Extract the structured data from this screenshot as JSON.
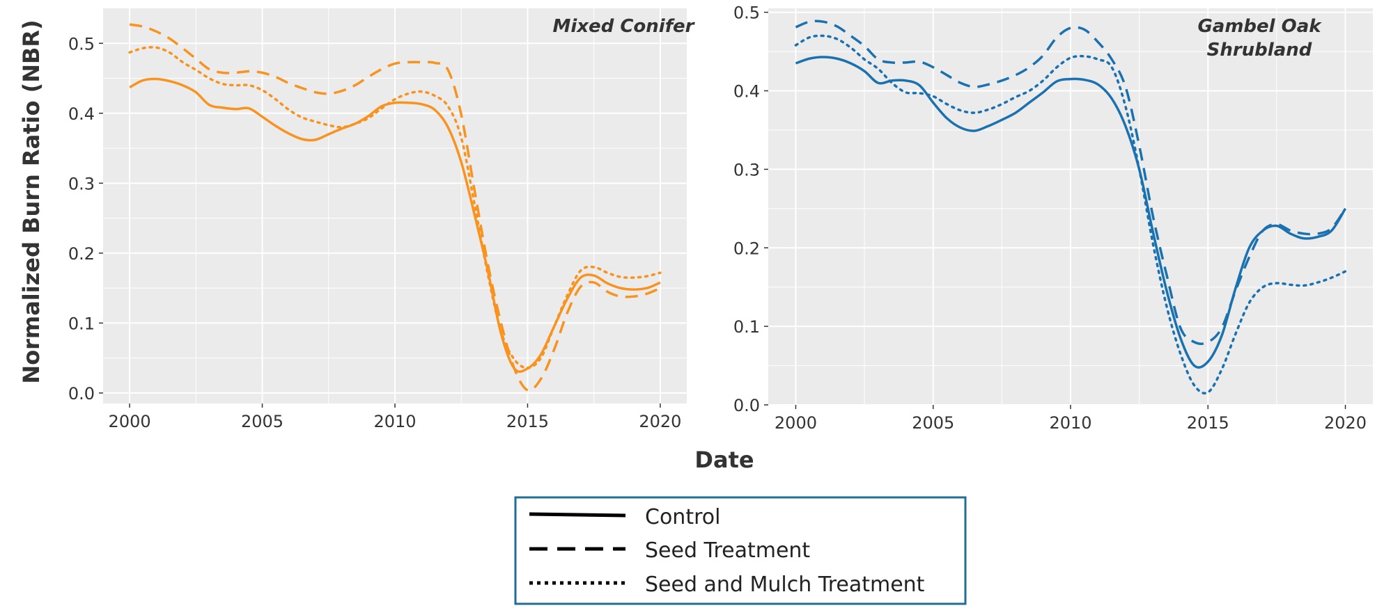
{
  "colors": {
    "mixed_conifer": "#F7931E",
    "gambel_oak": "#1A71B0",
    "panel_bg": "#EBEBEB",
    "grid": "#FFFFFF",
    "legend_border": "#1F6E96",
    "legend_line": "#000000"
  },
  "shared": {
    "ylabel": "Normalized Burn Ratio (NBR)",
    "xlabel": "Date"
  },
  "legend": {
    "placement": "bottom-center",
    "entries": [
      {
        "label": "Control",
        "style": "solid"
      },
      {
        "label": "Seed Treatment",
        "style": "dashed"
      },
      {
        "label": "Seed and Mulch Treatment",
        "style": "dotted"
      }
    ]
  },
  "chart_data": [
    {
      "type": "line",
      "title": "Mixed Conifer",
      "color_key": "mixed_conifer",
      "xlim": [
        1999,
        2021
      ],
      "ylim": [
        -0.015,
        0.55
      ],
      "xticks": [
        2000,
        2005,
        2010,
        2015,
        2020
      ],
      "yticks": [
        0.0,
        0.1,
        0.2,
        0.3,
        0.4,
        0.5
      ],
      "ytick_labels": [
        "0.0",
        "0.1",
        "0.2",
        "0.3",
        "0.4",
        "0.5"
      ],
      "grid": true,
      "x": [
        2000,
        2000.5,
        2001,
        2001.5,
        2002,
        2002.5,
        2003,
        2003.5,
        2004,
        2004.5,
        2005,
        2005.5,
        2006,
        2006.5,
        2007,
        2007.5,
        2008,
        2008.5,
        2009,
        2009.5,
        2010,
        2010.5,
        2011,
        2011.5,
        2012,
        2012.5,
        2013,
        2013.5,
        2014,
        2014.5,
        2015,
        2015.5,
        2016,
        2016.5,
        2017,
        2017.5,
        2018,
        2018.5,
        2019,
        2019.5,
        2020
      ],
      "series": [
        {
          "name": "Control",
          "style": "solid",
          "values": [
            0.437,
            0.447,
            0.449,
            0.446,
            0.44,
            0.43,
            0.412,
            0.408,
            0.406,
            0.407,
            0.395,
            0.382,
            0.371,
            0.363,
            0.362,
            0.37,
            0.378,
            0.385,
            0.396,
            0.41,
            0.415,
            0.415,
            0.413,
            0.405,
            0.38,
            0.33,
            0.255,
            0.175,
            0.085,
            0.035,
            0.035,
            0.055,
            0.095,
            0.135,
            0.165,
            0.168,
            0.157,
            0.15,
            0.148,
            0.15,
            0.158
          ]
        },
        {
          "name": "Seed Treatment",
          "style": "dashed",
          "values": [
            0.527,
            0.524,
            0.517,
            0.507,
            0.493,
            0.478,
            0.463,
            0.458,
            0.458,
            0.46,
            0.458,
            0.452,
            0.443,
            0.436,
            0.43,
            0.428,
            0.432,
            0.44,
            0.452,
            0.463,
            0.471,
            0.473,
            0.473,
            0.472,
            0.462,
            0.398,
            0.29,
            0.185,
            0.1,
            0.035,
            0.004,
            0.02,
            0.062,
            0.115,
            0.152,
            0.158,
            0.145,
            0.138,
            0.138,
            0.142,
            0.15
          ]
        },
        {
          "name": "Seed and Mulch Treatment",
          "style": "dotted",
          "values": [
            0.487,
            0.493,
            0.494,
            0.487,
            0.473,
            0.462,
            0.45,
            0.442,
            0.44,
            0.44,
            0.433,
            0.42,
            0.405,
            0.394,
            0.388,
            0.383,
            0.38,
            0.385,
            0.393,
            0.407,
            0.42,
            0.428,
            0.431,
            0.425,
            0.41,
            0.365,
            0.27,
            0.17,
            0.088,
            0.048,
            0.036,
            0.05,
            0.095,
            0.14,
            0.175,
            0.18,
            0.172,
            0.166,
            0.165,
            0.167,
            0.172
          ]
        }
      ]
    },
    {
      "type": "line",
      "title": "Gambel Oak Shrubland",
      "color_key": "gambel_oak",
      "xlim": [
        1999,
        2021
      ],
      "ylim": [
        0.0,
        0.505
      ],
      "xticks": [
        2000,
        2005,
        2010,
        2015,
        2020
      ],
      "yticks": [
        0.0,
        0.1,
        0.2,
        0.3,
        0.4,
        0.5
      ],
      "ytick_labels": [
        "0.0",
        "0.1",
        "0.2",
        "0.3",
        "0.4",
        "0.5"
      ],
      "grid": true,
      "x": [
        2000,
        2000.5,
        2001,
        2001.5,
        2002,
        2002.5,
        2003,
        2003.5,
        2004,
        2004.5,
        2005,
        2005.5,
        2006,
        2006.5,
        2007,
        2007.5,
        2008,
        2008.5,
        2009,
        2009.5,
        2010,
        2010.5,
        2011,
        2011.5,
        2012,
        2012.5,
        2013,
        2013.5,
        2014,
        2014.5,
        2015,
        2015.5,
        2016,
        2016.5,
        2017,
        2017.5,
        2018,
        2018.5,
        2019,
        2019.5,
        2020
      ],
      "series": [
        {
          "name": "Control",
          "style": "solid",
          "values": [
            0.435,
            0.441,
            0.443,
            0.441,
            0.435,
            0.425,
            0.41,
            0.413,
            0.413,
            0.407,
            0.385,
            0.365,
            0.353,
            0.349,
            0.355,
            0.363,
            0.372,
            0.385,
            0.398,
            0.412,
            0.415,
            0.414,
            0.408,
            0.39,
            0.355,
            0.3,
            0.22,
            0.145,
            0.085,
            0.05,
            0.055,
            0.088,
            0.148,
            0.2,
            0.222,
            0.228,
            0.218,
            0.212,
            0.214,
            0.222,
            0.25
          ]
        },
        {
          "name": "Seed Treatment",
          "style": "dashed",
          "values": [
            0.481,
            0.488,
            0.488,
            0.482,
            0.47,
            0.457,
            0.44,
            0.436,
            0.436,
            0.437,
            0.43,
            0.42,
            0.41,
            0.405,
            0.408,
            0.413,
            0.42,
            0.43,
            0.445,
            0.468,
            0.48,
            0.478,
            0.462,
            0.44,
            0.405,
            0.33,
            0.24,
            0.165,
            0.098,
            0.08,
            0.08,
            0.098,
            0.145,
            0.188,
            0.222,
            0.23,
            0.222,
            0.218,
            0.218,
            0.225,
            0.25
          ]
        },
        {
          "name": "Seed and Mulch Treatment",
          "style": "dotted",
          "values": [
            0.458,
            0.468,
            0.47,
            0.466,
            0.455,
            0.44,
            0.428,
            0.41,
            0.398,
            0.397,
            0.393,
            0.383,
            0.375,
            0.372,
            0.376,
            0.383,
            0.392,
            0.4,
            0.413,
            0.43,
            0.442,
            0.444,
            0.44,
            0.43,
            0.38,
            0.3,
            0.205,
            0.125,
            0.065,
            0.025,
            0.016,
            0.045,
            0.09,
            0.13,
            0.15,
            0.155,
            0.153,
            0.152,
            0.156,
            0.162,
            0.17
          ]
        }
      ]
    }
  ]
}
